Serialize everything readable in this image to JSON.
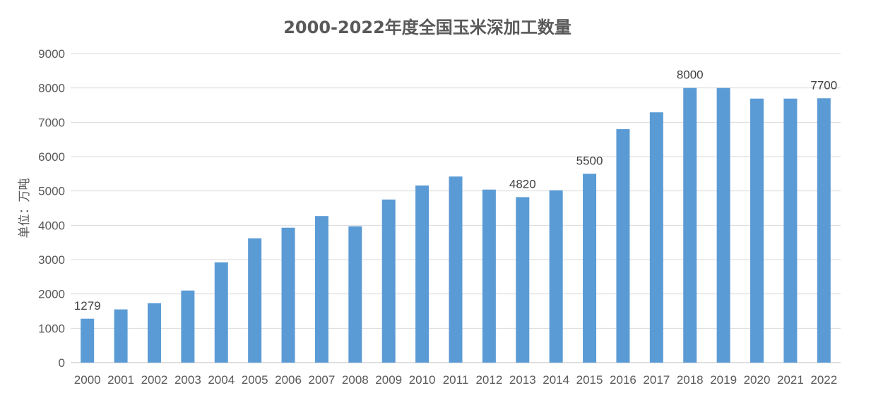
{
  "chart_data": {
    "type": "bar",
    "title": "2000-2022年度全国玉米深加工数量",
    "ylabel": "单位：万吨",
    "xlabel": "",
    "ylim": [
      0,
      9000
    ],
    "yticks": [
      0,
      1000,
      2000,
      3000,
      4000,
      5000,
      6000,
      7000,
      8000,
      9000
    ],
    "grid": true,
    "bar_color": "#5b9bd5",
    "categories": [
      "2000",
      "2001",
      "2002",
      "2003",
      "2004",
      "2005",
      "2006",
      "2007",
      "2008",
      "2009",
      "2010",
      "2011",
      "2012",
      "2013",
      "2014",
      "2015",
      "2016",
      "2017",
      "2018",
      "2019",
      "2020",
      "2021",
      "2022"
    ],
    "values": [
      1279,
      1550,
      1730,
      2100,
      2920,
      3620,
      3930,
      4270,
      3970,
      4750,
      5160,
      5420,
      5040,
      4820,
      5020,
      5500,
      6800,
      7290,
      8000,
      8000,
      7690,
      7690,
      7700
    ],
    "data_labels": [
      {
        "index": 0,
        "text": "1279"
      },
      {
        "index": 13,
        "text": "4820"
      },
      {
        "index": 15,
        "text": "5500"
      },
      {
        "index": 18,
        "text": "8000"
      },
      {
        "index": 22,
        "text": "7700"
      }
    ]
  }
}
